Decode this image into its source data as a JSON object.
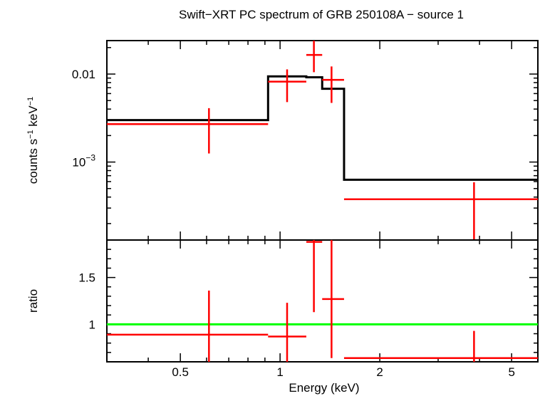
{
  "chart_data": [
    {
      "type": "scatter",
      "title": "Swift−XRT PC spectrum of GRB 250108A − source 1",
      "ylabel_parts": [
        "counts s",
        "−1",
        " keV",
        "−1"
      ],
      "x_scale": "log",
      "y_scale": "log",
      "xlim": [
        0.3,
        6.0
      ],
      "ylim": [
        0.00013,
        0.024
      ],
      "y_ticks": [
        {
          "value": 0.01,
          "label_base": "0.01",
          "label_exp": ""
        },
        {
          "value": 0.001,
          "label_base": "10",
          "label_exp": "−3"
        }
      ],
      "data_points": [
        {
          "x": 0.61,
          "x_lo": 0.3,
          "x_hi": 0.92,
          "y": 0.0027,
          "y_lo": 0.00125,
          "y_hi": 0.0041
        },
        {
          "x": 1.05,
          "x_lo": 0.92,
          "x_hi": 1.2,
          "y": 0.0082,
          "y_lo": 0.0048,
          "y_hi": 0.0113
        },
        {
          "x": 1.265,
          "x_lo": 1.2,
          "x_hi": 1.34,
          "y": 0.0165,
          "y_lo": 0.0105,
          "y_hi": 0.024
        },
        {
          "x": 1.43,
          "x_lo": 1.34,
          "x_hi": 1.56,
          "y": 0.0086,
          "y_lo": 0.0047,
          "y_hi": 0.0122
        },
        {
          "x": 3.85,
          "x_lo": 1.56,
          "x_hi": 6.0,
          "y": 0.000378,
          "y_lo": 0.000128,
          "y_hi": 0.00059
        }
      ],
      "model_steps": [
        {
          "x_lo": 0.3,
          "x_hi": 0.92,
          "y": 0.003
        },
        {
          "x_lo": 0.92,
          "x_hi": 1.2,
          "y": 0.0094
        },
        {
          "x_lo": 1.2,
          "x_hi": 1.34,
          "y": 0.0092
        },
        {
          "x_lo": 1.34,
          "x_hi": 1.56,
          "y": 0.0068
        },
        {
          "x_lo": 1.56,
          "x_hi": 6.0,
          "y": 0.00063
        }
      ]
    },
    {
      "type": "scatter",
      "ylabel": "ratio",
      "xlabel": "Energy (keV)",
      "x_scale": "log",
      "xlim": [
        0.3,
        6.0
      ],
      "ylim": [
        0.6,
        1.9
      ],
      "y_ticks": [
        {
          "value": 1.0,
          "label": "1"
        },
        {
          "value": 1.5,
          "label": "1.5"
        }
      ],
      "x_ticks": [
        {
          "value": 0.5,
          "label": "0.5"
        },
        {
          "value": 1.0,
          "label": "1"
        },
        {
          "value": 2.0,
          "label": "2"
        },
        {
          "value": 5.0,
          "label": "5"
        }
      ],
      "reference_line": 1.0,
      "data_points": [
        {
          "x": 0.61,
          "x_lo": 0.3,
          "x_hi": 0.92,
          "y": 0.89,
          "y_lo": 0.6,
          "y_hi": 1.36
        },
        {
          "x": 1.05,
          "x_lo": 0.92,
          "x_hi": 1.2,
          "y": 0.87,
          "y_lo": 0.6,
          "y_hi": 1.23
        },
        {
          "x": 1.265,
          "x_lo": 1.2,
          "x_hi": 1.34,
          "y": 1.88,
          "y_lo": 1.13,
          "y_hi": 1.9
        },
        {
          "x": 1.43,
          "x_lo": 1.34,
          "x_hi": 1.56,
          "y": 1.27,
          "y_lo": 0.64,
          "y_hi": 1.9
        },
        {
          "x": 3.85,
          "x_lo": 1.56,
          "x_hi": 6.0,
          "y": 0.64,
          "y_lo": 0.6,
          "y_hi": 0.93
        }
      ]
    }
  ],
  "colors": {
    "data": "#ff0000",
    "model": "#000000",
    "unity_line": "#00ff00"
  }
}
